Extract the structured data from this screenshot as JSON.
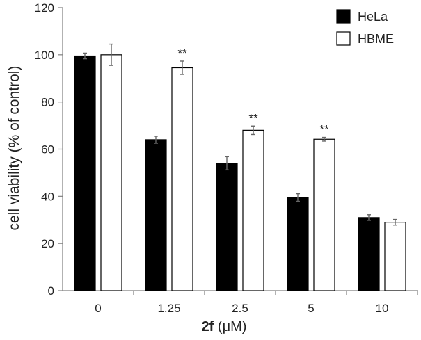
{
  "chart_data": {
    "type": "bar",
    "categories": [
      "0",
      "1.25",
      "2.5",
      "5",
      "10"
    ],
    "series": [
      {
        "name": "HeLa",
        "color": "#000000",
        "values": [
          99.5,
          64,
          54,
          39.5,
          31
        ],
        "errors": [
          1.2,
          1.5,
          2.8,
          1.6,
          1.2
        ]
      },
      {
        "name": "HBME",
        "color": "#ffffff",
        "values": [
          100,
          94.5,
          68,
          64.2,
          29
        ],
        "errors": [
          4.5,
          2.8,
          1.8,
          0.8,
          1.2
        ]
      }
    ],
    "annotations": [
      {
        "category": "1.25",
        "series": "HBME",
        "text": "**"
      },
      {
        "category": "2.5",
        "series": "HBME",
        "text": "**"
      },
      {
        "category": "5",
        "series": "HBME",
        "text": "**"
      }
    ],
    "ylabel": "cell viability (% of control)",
    "xlabel_bold": "2f",
    "xlabel_rest": " (μM)",
    "ylim": [
      0,
      120
    ],
    "yticks": [
      0,
      20,
      40,
      60,
      80,
      100,
      120
    ],
    "grid": false,
    "legend": "top-right"
  }
}
